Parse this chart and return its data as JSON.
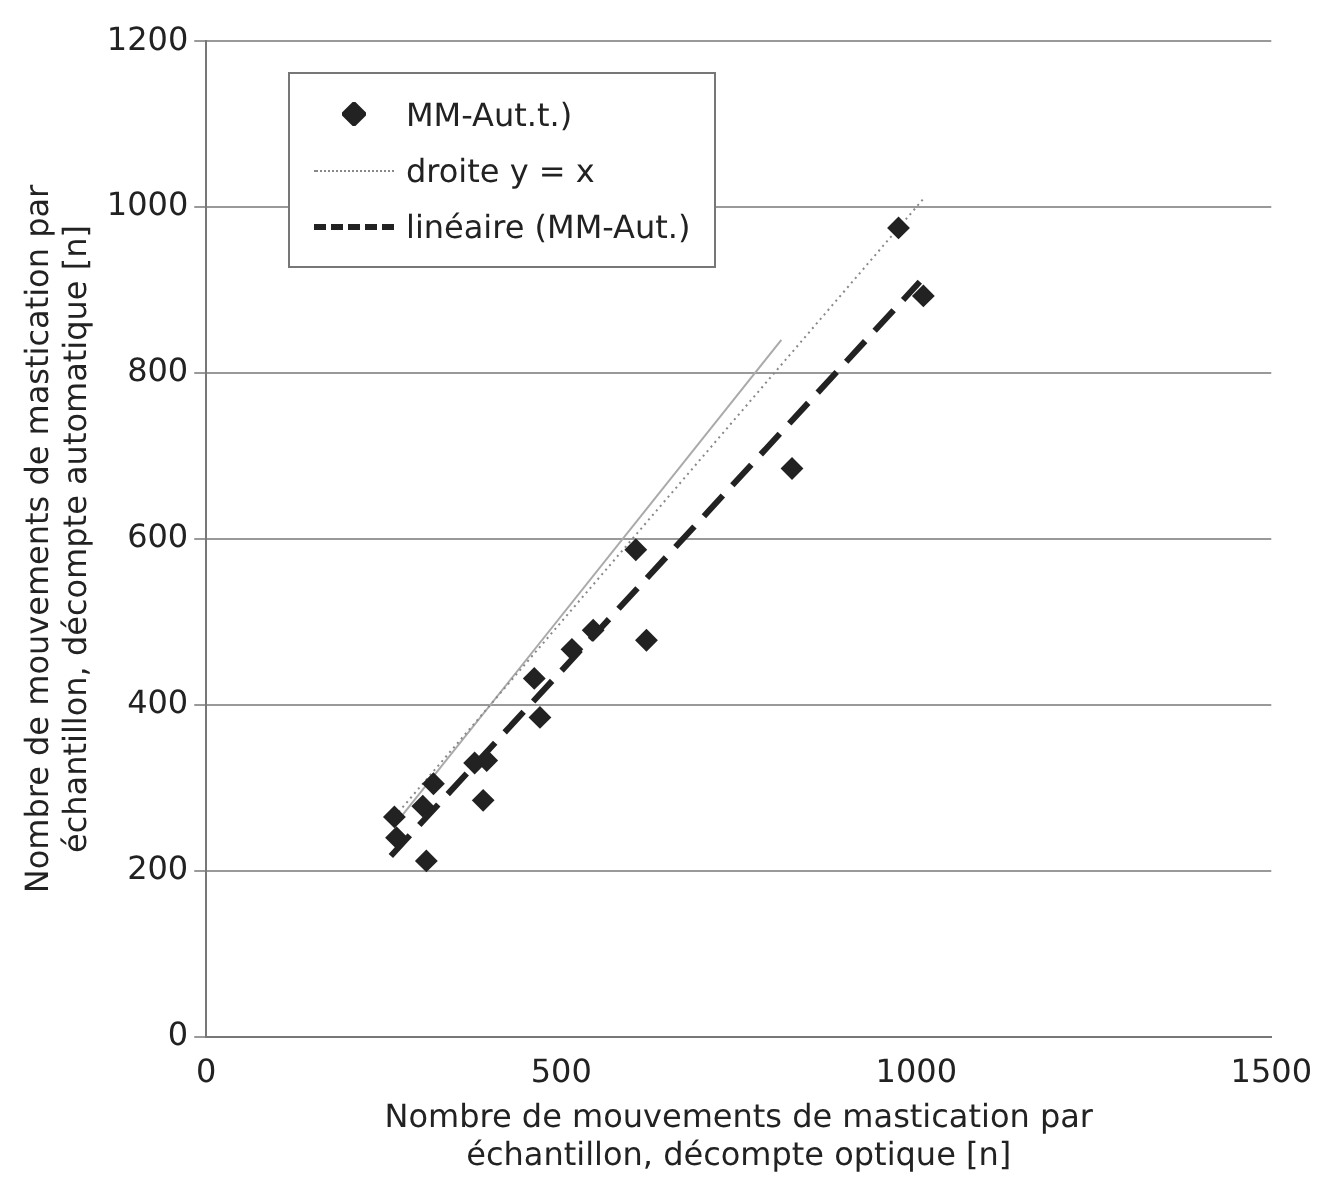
{
  "chart_data": {
    "type": "scatter",
    "xlabel": "Nombre de mouvements de mastication par\néchantillon, décompte optique [n]",
    "ylabel": "Nombre de mouvements de mastication par\néchantillon, décompte automatique [n]",
    "xlim": [
      0,
      1500
    ],
    "xticks": [
      0,
      500,
      1000,
      1500
    ],
    "ylim": [
      0,
      1200
    ],
    "yticks": [
      0,
      200,
      400,
      600,
      800,
      1000,
      1200
    ],
    "grid": "y",
    "legend": "top left",
    "series": [
      {
        "name": "MM-Aut.t.)",
        "type": "scatter",
        "marker": "diamond",
        "color": "#222222",
        "x": [
          265,
          268,
          305,
          310,
          320,
          378,
          390,
          395,
          462,
          470,
          515,
          545,
          605,
          620,
          825,
          975,
          1010
        ],
        "values": [
          265,
          240,
          278,
          212,
          305,
          330,
          285,
          333,
          432,
          385,
          467,
          490,
          587,
          478,
          685,
          975,
          893
        ]
      },
      {
        "name": "droite y = x",
        "type": "line",
        "marker": "none",
        "line_style": "dotted",
        "color": "#888888",
        "x": [
          260,
          1010
        ],
        "values": [
          260,
          1010
        ]
      },
      {
        "type": "line",
        "marker": "none",
        "line_style": "solid",
        "color": "#aaaaaa",
        "x": [
          265,
          810
        ],
        "values": [
          255,
          840
        ]
      },
      {
        "name": "linéaire (MM-Aut.)",
        "type": "line",
        "marker": "none",
        "line_style": "dashed",
        "color": "#222222",
        "x": [
          260,
          1005
        ],
        "values": [
          218,
          910
        ]
      }
    ]
  }
}
